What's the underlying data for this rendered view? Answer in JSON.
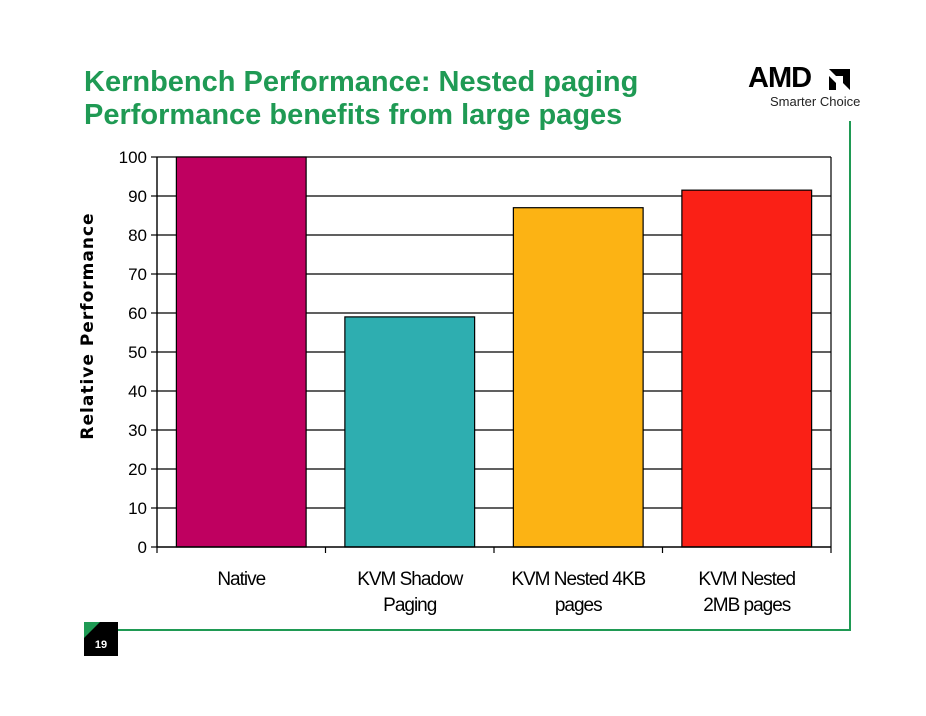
{
  "slide": {
    "title_line1": "Kernbench Performance: Nested paging",
    "title_line2": "Performance benefits from large pages",
    "brand": "AMD",
    "tagline": "Smarter Choice",
    "page_number": "19",
    "accent_color": "#1f9a54"
  },
  "chart_data": {
    "type": "bar",
    "title": "",
    "xlabel": "",
    "ylabel": "Relative Performance",
    "ylim": [
      0,
      100
    ],
    "yticks": [
      0,
      10,
      20,
      30,
      40,
      50,
      60,
      70,
      80,
      90,
      100
    ],
    "grid": true,
    "categories": [
      [
        "Native"
      ],
      [
        "KVM Shadow",
        "Paging"
      ],
      [
        "KVM Nested 4KB",
        "pages"
      ],
      [
        "KVM Nested",
        "2MB pages"
      ]
    ],
    "values": [
      100,
      59,
      87,
      91.5
    ],
    "colors": [
      "#bf0060",
      "#2eaeb0",
      "#fcb314",
      "#fa2016"
    ]
  }
}
